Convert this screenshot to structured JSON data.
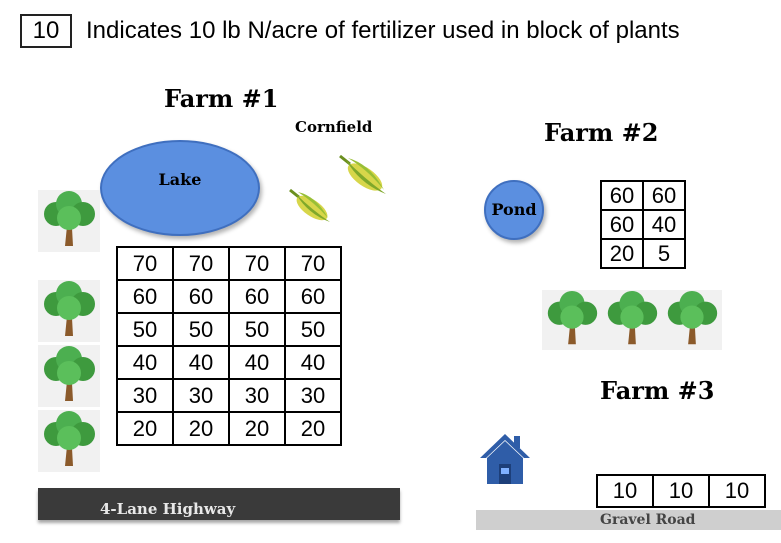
{
  "legend": {
    "sample_value": "10",
    "text": "Indicates 10 lb N/acre of fertilizer used in block of plants"
  },
  "farm1": {
    "title": "Farm #1",
    "cornfield_label": "Cornfield",
    "lake_label": "Lake",
    "rows": [
      [
        "70",
        "70",
        "70",
        "70"
      ],
      [
        "60",
        "60",
        "60",
        "60"
      ],
      [
        "50",
        "50",
        "50",
        "50"
      ],
      [
        "40",
        "40",
        "40",
        "40"
      ],
      [
        "30",
        "30",
        "30",
        "30"
      ],
      [
        "20",
        "20",
        "20",
        "20"
      ]
    ]
  },
  "farm2": {
    "title": "Farm #2",
    "pond_label": "Pond",
    "rows": [
      [
        "60",
        "60"
      ],
      [
        "60",
        "40"
      ],
      [
        "20",
        "5"
      ]
    ]
  },
  "farm3": {
    "title": "Farm #3",
    "rows": [
      [
        "10",
        "10",
        "10"
      ]
    ]
  },
  "roads": {
    "highway_label": "4-Lane Highway",
    "gravel_label": "Gravel Road"
  },
  "colors": {
    "water": "#5b8fe0",
    "tree_foliage": "#4caf50",
    "trunk": "#8b5a2b",
    "corn": "#a8c83a",
    "house": "#2f5da8"
  }
}
